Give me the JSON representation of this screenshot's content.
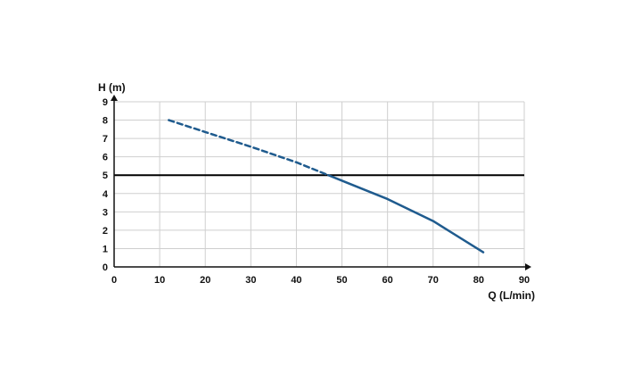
{
  "chart_data": {
    "type": "line",
    "xlabel": "Q (L/min)",
    "ylabel": "H (m)",
    "xlim": [
      0,
      90
    ],
    "ylim": [
      0,
      9
    ],
    "xticks": [
      0,
      10,
      20,
      30,
      40,
      50,
      60,
      70,
      80,
      90
    ],
    "yticks": [
      0,
      1,
      2,
      3,
      4,
      5,
      6,
      7,
      8,
      9
    ],
    "grid": true,
    "reference_line": {
      "y": 5,
      "color": "#000000"
    },
    "series": [
      {
        "color": "#1f5b8e",
        "style": "dashed",
        "x": [
          12,
          20,
          30,
          40,
          47
        ],
        "y": [
          8.0,
          7.35,
          6.55,
          5.7,
          5.0
        ]
      },
      {
        "color": "#1f5b8e",
        "style": "solid",
        "x": [
          47,
          55,
          60,
          70,
          81
        ],
        "y": [
          5.0,
          4.2,
          3.7,
          2.5,
          0.8
        ]
      }
    ]
  }
}
